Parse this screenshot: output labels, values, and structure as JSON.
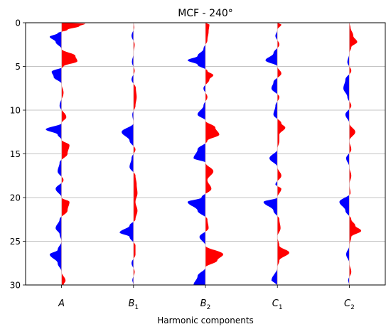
{
  "chart_data": {
    "type": "area",
    "title": "MCF - 240°",
    "xlabel": "Harmonic components",
    "ylabel": "",
    "categories": [
      {
        "base": "A",
        "sub": ""
      },
      {
        "base": "B",
        "sub": "1"
      },
      {
        "base": "B",
        "sub": "2"
      },
      {
        "base": "C",
        "sub": "1"
      },
      {
        "base": "C",
        "sub": "2"
      }
    ],
    "ylim": [
      30,
      0
    ],
    "yticks": [
      0,
      5,
      10,
      15,
      20,
      25,
      30
    ],
    "grid": "horizontal",
    "colors": {
      "positive": "#ff0000",
      "negative": "#0000ff"
    },
    "series": [
      {
        "values": [
          [
            0.1,
            0.6
          ],
          [
            0.4,
            0.45
          ],
          [
            0.8,
            0.15
          ],
          [
            1.2,
            -0.1
          ],
          [
            1.6,
            -0.3
          ],
          [
            2.2,
            -0.15
          ],
          [
            3.0,
            0.0
          ],
          [
            3.8,
            0.35
          ],
          [
            4.4,
            0.4
          ],
          [
            5.0,
            0.05
          ],
          [
            5.6,
            -0.25
          ],
          [
            6.2,
            -0.2
          ],
          [
            7.0,
            0.0
          ],
          [
            8.0,
            0.05
          ],
          [
            9.5,
            -0.05
          ],
          [
            10.8,
            0.12
          ],
          [
            11.5,
            0.0
          ],
          [
            12.2,
            -0.4
          ],
          [
            12.8,
            -0.1
          ],
          [
            13.4,
            0.0
          ],
          [
            14.0,
            0.2
          ],
          [
            15.0,
            0.15
          ],
          [
            16.0,
            -0.05
          ],
          [
            17.0,
            -0.1
          ],
          [
            18.0,
            0.05
          ],
          [
            19.0,
            -0.15
          ],
          [
            20.0,
            0.0
          ],
          [
            20.5,
            0.2
          ],
          [
            21.5,
            0.15
          ],
          [
            22.5,
            -0.05
          ],
          [
            23.5,
            -0.15
          ],
          [
            24.2,
            -0.05
          ],
          [
            25.0,
            0.0
          ],
          [
            26.0,
            -0.1
          ],
          [
            26.5,
            -0.3
          ],
          [
            27.5,
            -0.1
          ],
          [
            28.5,
            0.0
          ],
          [
            29.5,
            0.1
          ],
          [
            30.0,
            0.05
          ]
        ]
      },
      {
        "values": [
          [
            0.5,
            0.02
          ],
          [
            1.5,
            -0.05
          ],
          [
            2.5,
            0.03
          ],
          [
            3.5,
            0.0
          ],
          [
            4.5,
            -0.04
          ],
          [
            5.5,
            0.03
          ],
          [
            6.5,
            -0.05
          ],
          [
            7.5,
            0.06
          ],
          [
            8.5,
            0.08
          ],
          [
            9.5,
            0.05
          ],
          [
            10.5,
            -0.03
          ],
          [
            11.5,
            0.0
          ],
          [
            12.5,
            -0.3
          ],
          [
            13.5,
            -0.1
          ],
          [
            14.5,
            0.05
          ],
          [
            15.5,
            -0.05
          ],
          [
            16.5,
            -0.1
          ],
          [
            17.5,
            0.05
          ],
          [
            18.5,
            0.08
          ],
          [
            19.5,
            0.1
          ],
          [
            20.5,
            0.05
          ],
          [
            21.5,
            0.1
          ],
          [
            22.5,
            0.05
          ],
          [
            23.2,
            -0.1
          ],
          [
            24.0,
            -0.35
          ],
          [
            24.5,
            -0.1
          ],
          [
            25.5,
            0.05
          ],
          [
            26.5,
            0.05
          ],
          [
            27.5,
            -0.05
          ],
          [
            28.5,
            0.03
          ],
          [
            29.5,
            -0.03
          ]
        ]
      },
      {
        "values": [
          [
            0.2,
            0.1
          ],
          [
            1.0,
            0.08
          ],
          [
            2.0,
            0.05
          ],
          [
            3.0,
            -0.05
          ],
          [
            3.8,
            -0.2
          ],
          [
            4.3,
            -0.45
          ],
          [
            4.8,
            -0.2
          ],
          [
            5.5,
            0.05
          ],
          [
            6.0,
            0.2
          ],
          [
            6.5,
            0.1
          ],
          [
            7.5,
            -0.05
          ],
          [
            8.5,
            0.05
          ],
          [
            9.5,
            -0.05
          ],
          [
            10.5,
            -0.2
          ],
          [
            11.2,
            0.0
          ],
          [
            12.0,
            0.25
          ],
          [
            12.8,
            0.35
          ],
          [
            13.5,
            0.05
          ],
          [
            14.5,
            -0.2
          ],
          [
            15.5,
            -0.3
          ],
          [
            16.0,
            0.0
          ],
          [
            17.0,
            0.2
          ],
          [
            18.0,
            0.05
          ],
          [
            19.0,
            0.15
          ],
          [
            20.0,
            -0.1
          ],
          [
            20.5,
            -0.45
          ],
          [
            21.5,
            -0.2
          ],
          [
            22.5,
            0.05
          ],
          [
            23.5,
            0.08
          ],
          [
            24.5,
            -0.15
          ],
          [
            25.5,
            0.0
          ],
          [
            26.5,
            0.45
          ],
          [
            27.2,
            0.3
          ],
          [
            28.0,
            0.0
          ],
          [
            29.0,
            -0.2
          ],
          [
            30.0,
            -0.3
          ]
        ]
      },
      {
        "values": [
          [
            0.2,
            0.1
          ],
          [
            0.8,
            0.0
          ],
          [
            1.5,
            -0.05
          ],
          [
            2.5,
            0.05
          ],
          [
            3.5,
            -0.1
          ],
          [
            4.3,
            -0.3
          ],
          [
            5.0,
            0.0
          ],
          [
            5.8,
            0.1
          ],
          [
            6.8,
            -0.1
          ],
          [
            7.5,
            -0.15
          ],
          [
            8.5,
            0.05
          ],
          [
            9.5,
            -0.05
          ],
          [
            10.5,
            -0.1
          ],
          [
            11.5,
            0.1
          ],
          [
            12.0,
            0.2
          ],
          [
            12.8,
            0.05
          ],
          [
            13.5,
            0.05
          ],
          [
            14.5,
            0.0
          ],
          [
            15.5,
            -0.2
          ],
          [
            16.5,
            0.0
          ],
          [
            17.5,
            0.1
          ],
          [
            18.5,
            -0.05
          ],
          [
            19.0,
            0.1
          ],
          [
            20.0,
            0.0
          ],
          [
            20.5,
            -0.35
          ],
          [
            21.5,
            -0.1
          ],
          [
            22.5,
            0.05
          ],
          [
            23.5,
            0.08
          ],
          [
            24.5,
            0.0
          ],
          [
            25.5,
            0.05
          ],
          [
            26.3,
            0.3
          ],
          [
            27.2,
            0.05
          ],
          [
            28.0,
            0.0
          ],
          [
            29.5,
            -0.15
          ]
        ]
      },
      {
        "values": [
          [
            0.5,
            0.03
          ],
          [
            1.5,
            0.1
          ],
          [
            2.2,
            0.2
          ],
          [
            2.8,
            0.05
          ],
          [
            3.5,
            0.0
          ],
          [
            4.5,
            -0.05
          ],
          [
            5.5,
            0.05
          ],
          [
            6.5,
            -0.1
          ],
          [
            7.5,
            -0.15
          ],
          [
            8.5,
            -0.05
          ],
          [
            9.5,
            0.05
          ],
          [
            10.5,
            -0.1
          ],
          [
            11.5,
            0.0
          ],
          [
            12.5,
            0.15
          ],
          [
            13.5,
            0.0
          ],
          [
            14.5,
            0.05
          ],
          [
            15.5,
            -0.08
          ],
          [
            16.5,
            0.0
          ],
          [
            17.5,
            0.05
          ],
          [
            18.5,
            0.0
          ],
          [
            19.5,
            0.03
          ],
          [
            20.5,
            -0.25
          ],
          [
            21.5,
            -0.1
          ],
          [
            22.5,
            0.05
          ],
          [
            23.2,
            0.15
          ],
          [
            23.8,
            0.3
          ],
          [
            24.5,
            0.05
          ],
          [
            25.5,
            0.0
          ],
          [
            26.5,
            -0.08
          ],
          [
            27.5,
            0.0
          ],
          [
            28.5,
            0.05
          ],
          [
            29.5,
            -0.03
          ]
        ]
      }
    ]
  }
}
